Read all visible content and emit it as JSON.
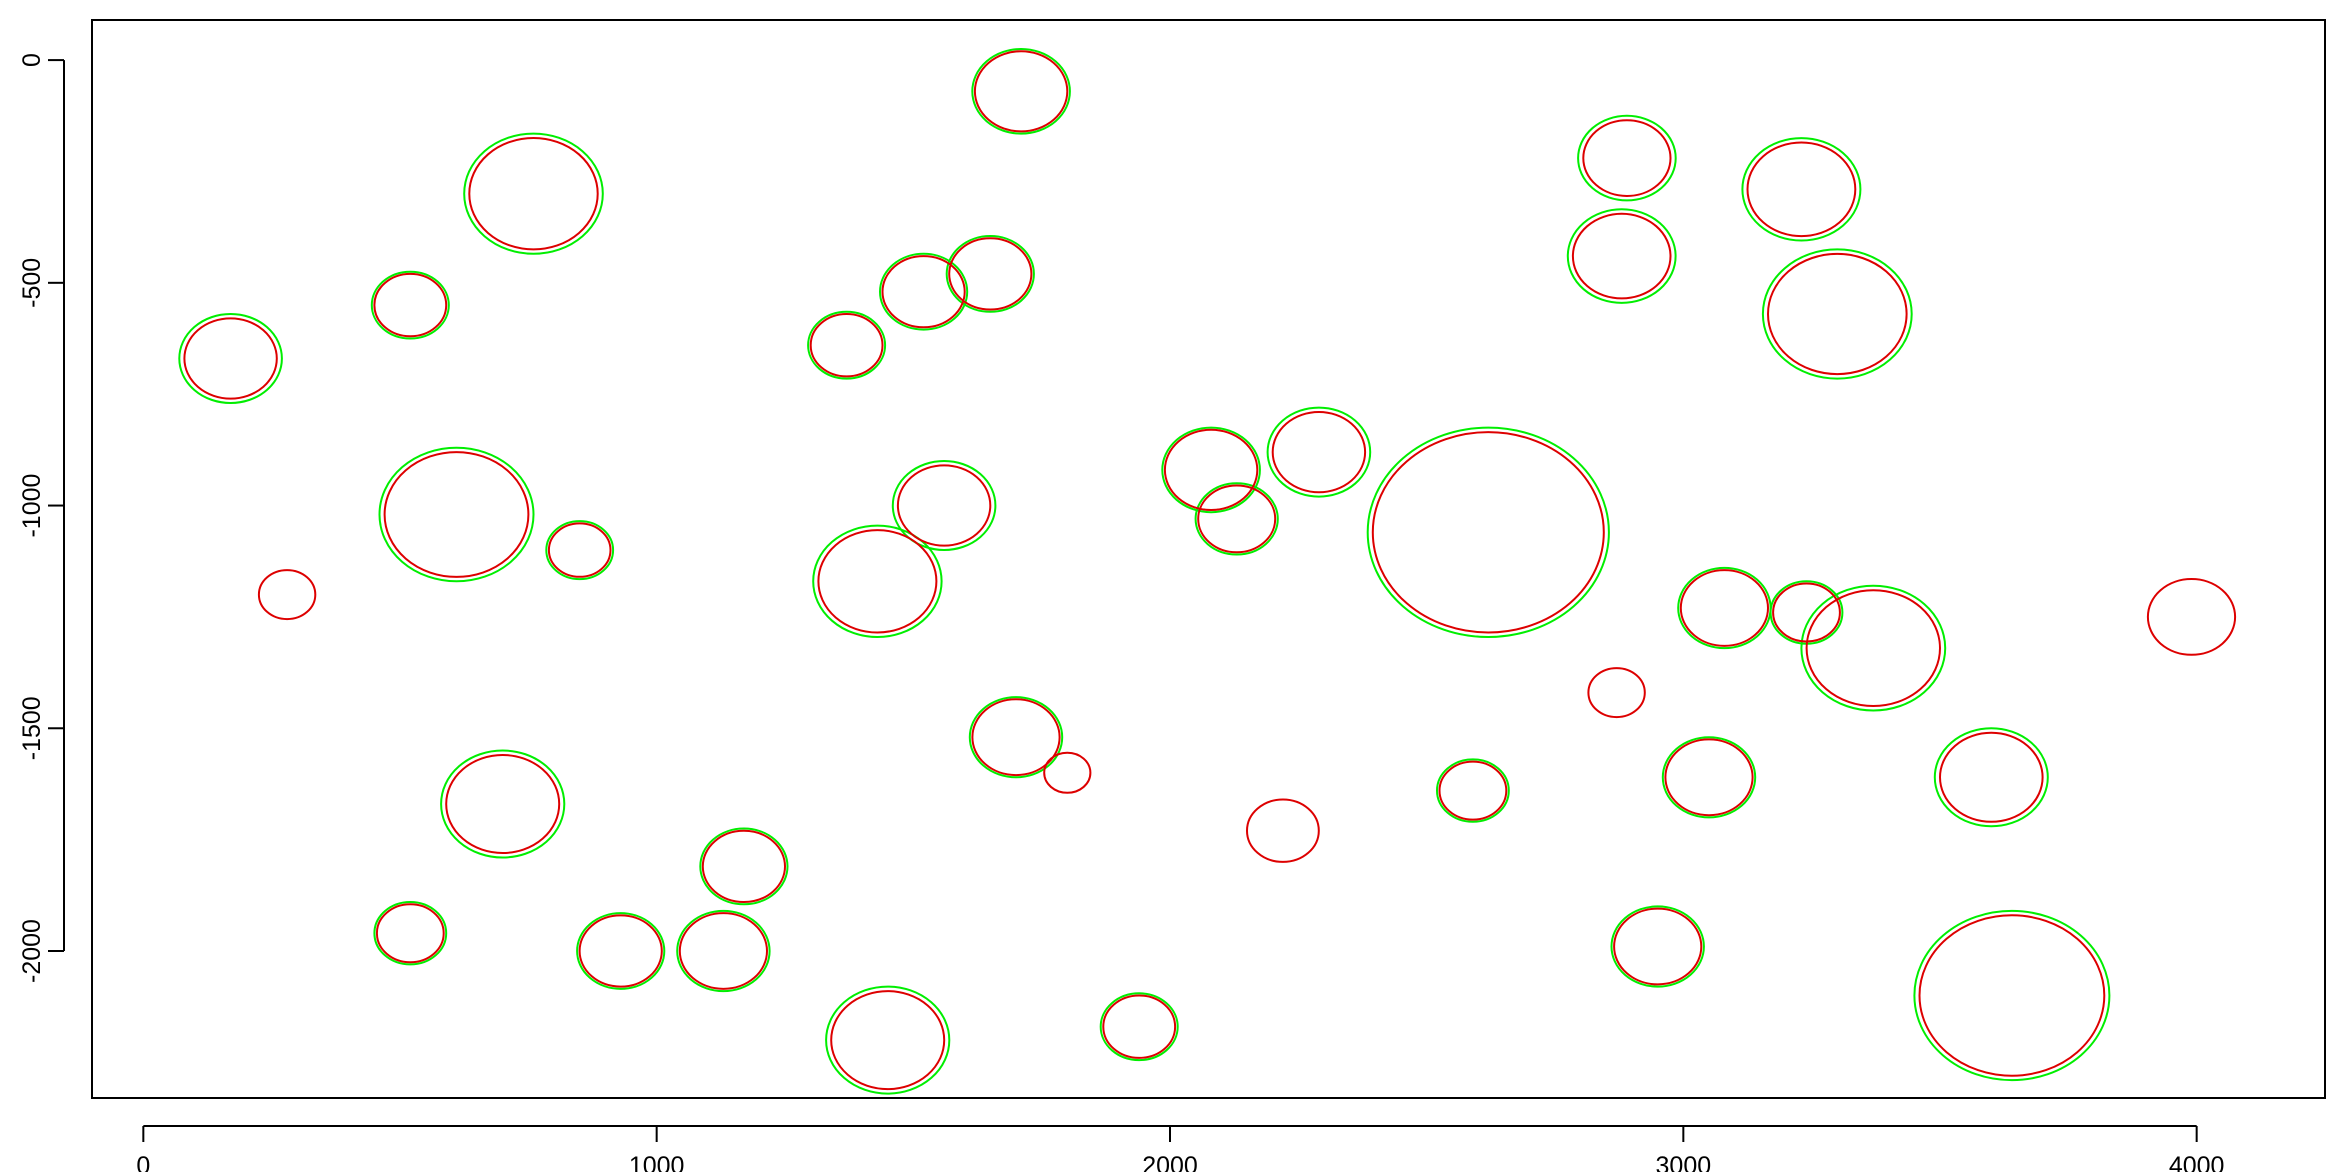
{
  "chart_data": {
    "type": "scatter",
    "title": "",
    "xlabel": "",
    "ylabel": "",
    "xlim": [
      -100,
      4250
    ],
    "ylim": [
      -2330,
      90
    ],
    "x_ticks": [
      0,
      1000,
      2000,
      3000,
      4000
    ],
    "y_ticks": [
      0,
      -500,
      -1000,
      -1500,
      -2000
    ],
    "x_tick_labels": [
      "0",
      "1000",
      "2000",
      "3000",
      "4000"
    ],
    "y_tick_labels": [
      "0",
      "-500",
      "-1000",
      "-1500",
      "-2000"
    ],
    "grid": false,
    "legend": "none",
    "marker": "open-circle",
    "series": [
      {
        "color": "#00ee00",
        "circles": [
          [
            760,
            -300,
            135
          ],
          [
            610,
            -1020,
            150
          ],
          [
            1710,
            -70,
            95
          ],
          [
            2620,
            -1060,
            235
          ],
          [
            3640,
            -2100,
            190
          ],
          [
            3230,
            -290,
            115
          ],
          [
            3300,
            -570,
            145
          ],
          [
            2890,
            -220,
            95
          ],
          [
            2880,
            -440,
            105
          ],
          [
            3370,
            -1320,
            140
          ],
          [
            3600,
            -1610,
            110
          ],
          [
            2950,
            -1990,
            90
          ],
          [
            3080,
            -1230,
            90
          ],
          [
            2290,
            -880,
            100
          ],
          [
            1430,
            -1170,
            125
          ],
          [
            1650,
            -480,
            85
          ],
          [
            1520,
            -520,
            85
          ],
          [
            1700,
            -1520,
            90
          ],
          [
            700,
            -1670,
            120
          ],
          [
            170,
            -670,
            100
          ],
          [
            1130,
            -2000,
            90
          ],
          [
            1170,
            -1810,
            85
          ],
          [
            930,
            -2000,
            85
          ],
          [
            1450,
            -2200,
            120
          ],
          [
            1940,
            -2170,
            75
          ],
          [
            2080,
            -920,
            95
          ],
          [
            2130,
            -1030,
            80
          ],
          [
            2590,
            -1640,
            70
          ],
          [
            3050,
            -1610,
            90
          ],
          [
            1560,
            -1000,
            100
          ],
          [
            1370,
            -640,
            75
          ],
          [
            520,
            -550,
            75
          ],
          [
            850,
            -1100,
            65
          ],
          [
            520,
            -1960,
            70
          ],
          [
            3240,
            -1240,
            70
          ]
        ]
      },
      {
        "color": "#dd0000",
        "circles": [
          [
            760,
            -300,
            125
          ],
          [
            610,
            -1020,
            140
          ],
          [
            1710,
            -70,
            90
          ],
          [
            2620,
            -1060,
            225
          ],
          [
            3640,
            -2100,
            180
          ],
          [
            3230,
            -290,
            105
          ],
          [
            3300,
            -570,
            135
          ],
          [
            2890,
            -220,
            85
          ],
          [
            2880,
            -440,
            95
          ],
          [
            3370,
            -1320,
            130
          ],
          [
            3600,
            -1610,
            100
          ],
          [
            2950,
            -1990,
            85
          ],
          [
            3080,
            -1230,
            85
          ],
          [
            2290,
            -880,
            90
          ],
          [
            1430,
            -1170,
            115
          ],
          [
            1650,
            -480,
            80
          ],
          [
            1520,
            -520,
            80
          ],
          [
            1700,
            -1520,
            85
          ],
          [
            700,
            -1670,
            110
          ],
          [
            170,
            -670,
            90
          ],
          [
            1130,
            -2000,
            85
          ],
          [
            1170,
            -1810,
            80
          ],
          [
            930,
            -2000,
            80
          ],
          [
            1450,
            -2200,
            110
          ],
          [
            1940,
            -2170,
            70
          ],
          [
            2080,
            -920,
            90
          ],
          [
            2130,
            -1030,
            75
          ],
          [
            2590,
            -1640,
            65
          ],
          [
            3050,
            -1610,
            85
          ],
          [
            1560,
            -1000,
            90
          ],
          [
            1370,
            -640,
            70
          ],
          [
            520,
            -550,
            70
          ],
          [
            850,
            -1100,
            60
          ],
          [
            520,
            -1960,
            65
          ],
          [
            3240,
            -1240,
            65
          ],
          [
            3990,
            -1250,
            85
          ],
          [
            2870,
            -1420,
            55
          ],
          [
            2220,
            -1730,
            70
          ],
          [
            1800,
            -1600,
            45
          ],
          [
            280,
            -1200,
            55
          ]
        ]
      }
    ]
  }
}
